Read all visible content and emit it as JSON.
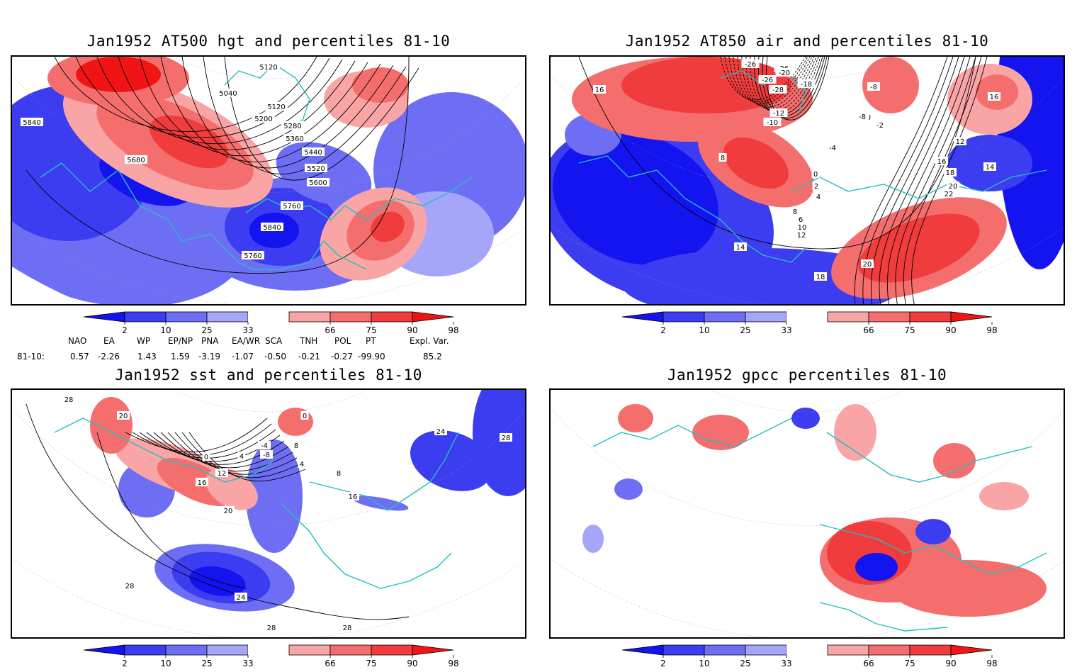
{
  "panels": [
    {
      "id": "hgt",
      "title": "Jan1952 AT500 hgt and percentiles 81-10",
      "contour_labels": [
        "5120",
        "5040",
        "5120",
        "5200",
        "5280",
        "5360",
        "5440",
        "5520",
        "5600",
        "5680",
        "5760",
        "5840",
        "5760",
        "5840"
      ]
    },
    {
      "id": "air",
      "title": "Jan1952 AT850 air and percentiles 81-10",
      "contour_labels": [
        "-26",
        "-26",
        "-26",
        "-20",
        "-28",
        "-18",
        "-10",
        "-8",
        "-12",
        "-10",
        "-8",
        "-2",
        "-4",
        "16",
        "16",
        "12",
        "14",
        "16",
        "18",
        "20",
        "22",
        "0",
        "2",
        "4",
        "8",
        "6",
        "10",
        "12",
        "14",
        "18",
        "20",
        "8"
      ]
    },
    {
      "id": "sst",
      "title": "Jan1952 sst and percentiles 81-10",
      "contour_labels": [
        "28",
        "20",
        "0",
        "-4",
        "-8",
        "4",
        "8",
        "12",
        "16",
        "20",
        "16",
        "24",
        "28",
        "28",
        "24",
        "28",
        "28",
        "0",
        "4",
        "8"
      ]
    },
    {
      "id": "gpcc",
      "title": "Jan1952 gpcc percentiles 81-10",
      "contour_labels": []
    }
  ],
  "colorbar": {
    "labels": [
      "2",
      "10",
      "25",
      "33",
      "66",
      "75",
      "90",
      "98"
    ],
    "colors": [
      "#1414f0",
      "#3c3cf0",
      "#6e6ef5",
      "#a5a5fa",
      "#ffffff",
      "#faa5a5",
      "#f56e6e",
      "#f03c3c",
      "#f01414"
    ]
  },
  "teleconnection": {
    "headers": [
      "NAO",
      "EA",
      "WP",
      "EP/NP",
      "PNA",
      "EA/WR",
      "SCA",
      "TNH",
      "POL",
      "PT",
      "Expl. Var."
    ],
    "row_label": "81-10:",
    "values": [
      "0.57",
      "-2.26",
      "1.43",
      "1.59",
      "-3.19",
      "-1.07",
      "-0.50",
      "-0.21",
      "-0.27",
      "-99.90",
      "85.2"
    ]
  }
}
